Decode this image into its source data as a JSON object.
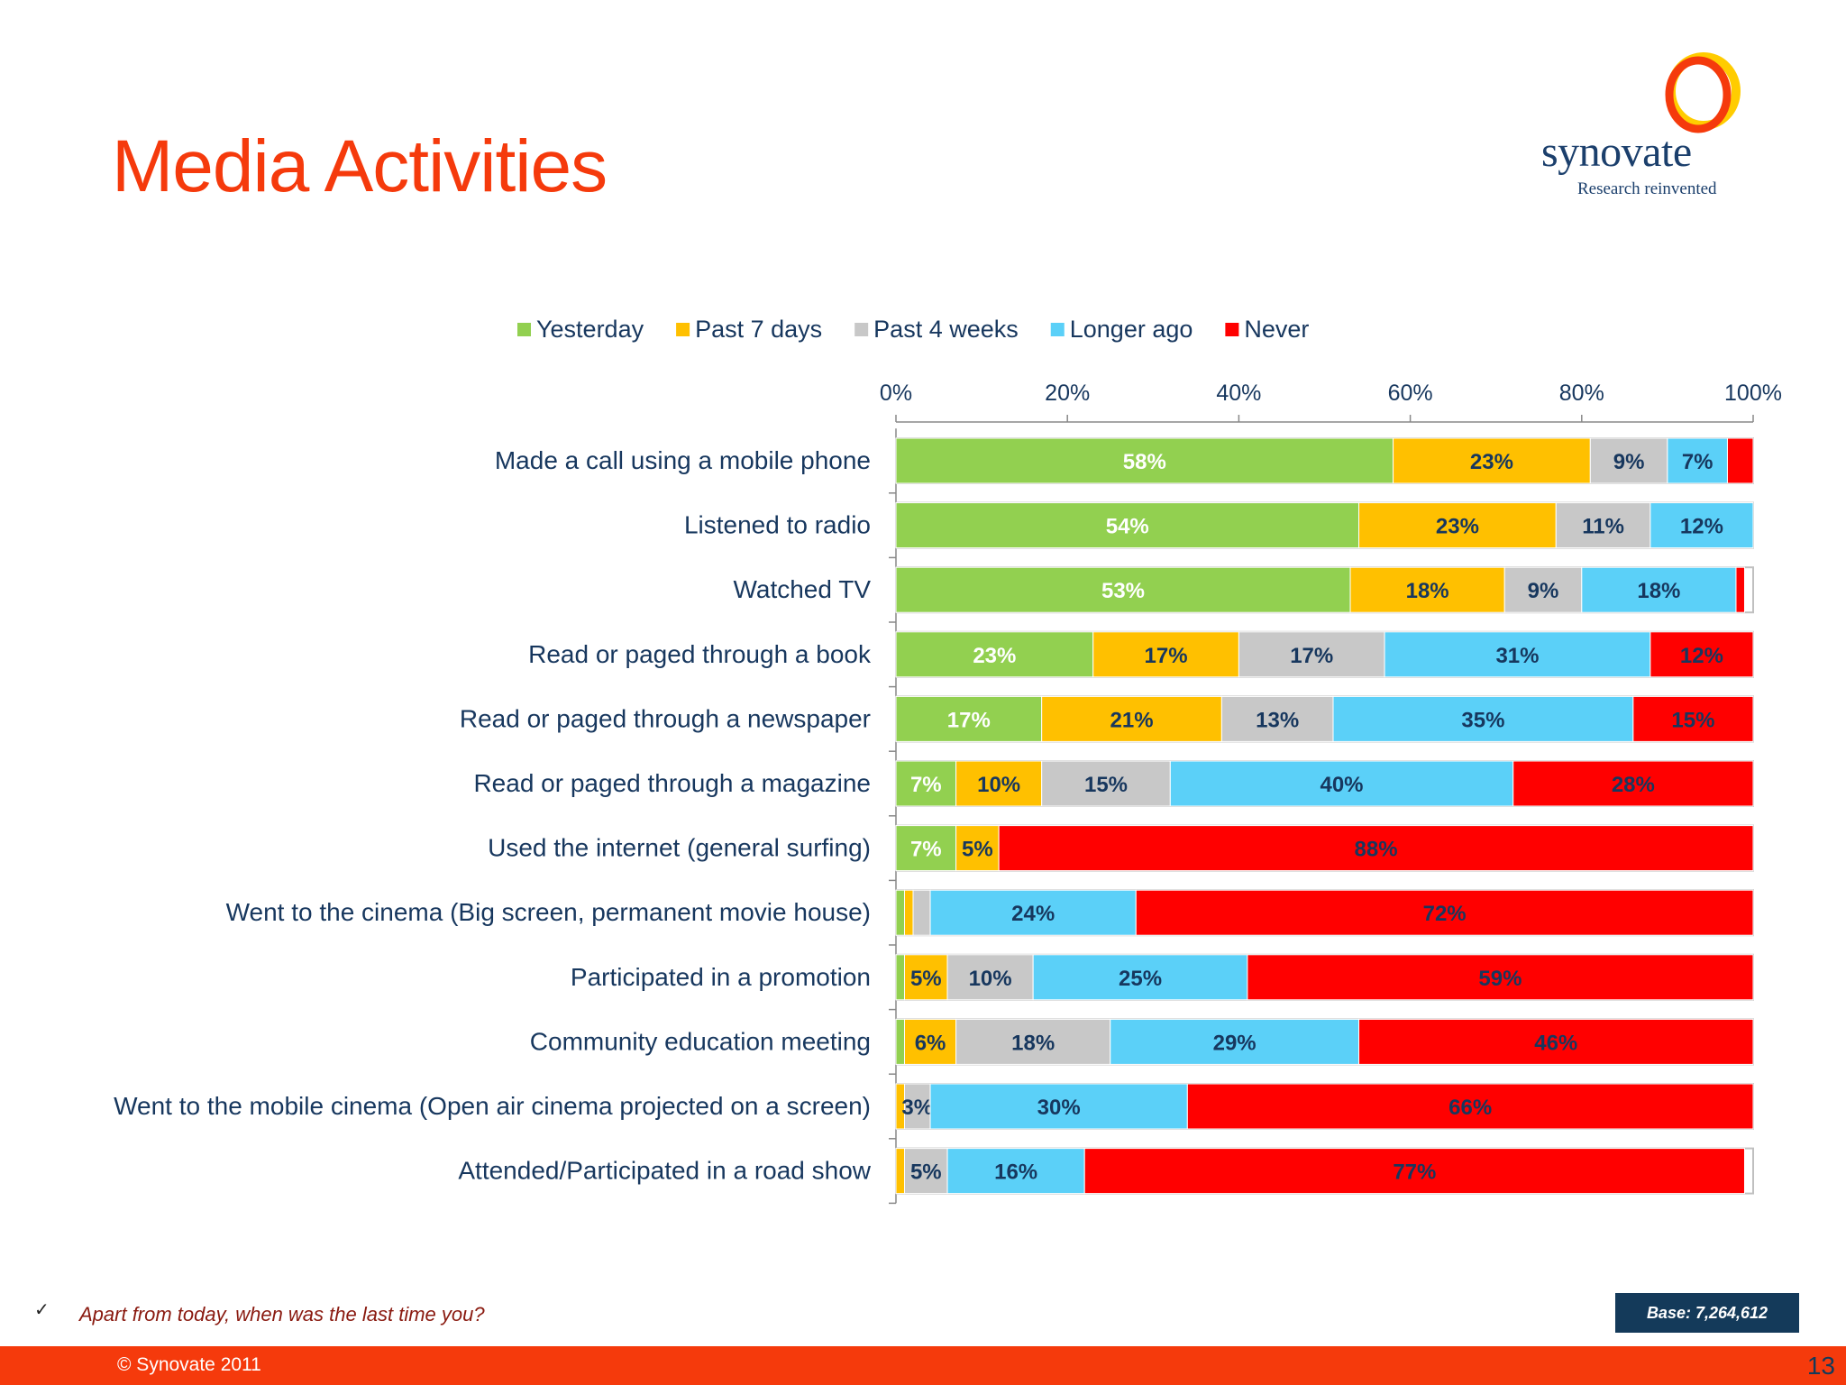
{
  "slide": {
    "title": "Media Activities",
    "logo": {
      "name": "synovate",
      "tagline": "Research reinvented"
    },
    "footnote_mark": "✓",
    "footnote": "Apart from today, when was the last time you?",
    "base": "Base: 7,264,612",
    "copyright": "© Synovate 2011",
    "page_number": "13",
    "colors": {
      "accent": "#f53a0c",
      "navy": "#143a5a"
    }
  },
  "chart_data": {
    "type": "bar",
    "orientation": "horizontal",
    "stacked": true,
    "xlim": [
      0,
      100
    ],
    "x_ticks": [
      "0%",
      "20%",
      "40%",
      "60%",
      "80%",
      "100%"
    ],
    "legend_position": "top",
    "categories": [
      "Made a call using a mobile phone",
      "Listened to radio",
      "Watched TV",
      "Read or paged through a book",
      "Read or paged through a newspaper",
      "Read or paged through a magazine",
      "Used the internet (general surfing)",
      "Went to the cinema (Big screen, permanent movie house)",
      "Participated in a promotion",
      "Community education meeting",
      "Went to the mobile cinema (Open air cinema projected on a screen)",
      "Attended/Participated in a road show"
    ],
    "series": [
      {
        "name": "Yesterday",
        "color": "#92d050",
        "label_color": "#ffffff",
        "values": [
          58,
          54,
          53,
          23,
          17,
          7,
          7,
          1,
          1,
          1,
          0,
          0
        ],
        "labels": [
          "58%",
          "54%",
          "53%",
          "23%",
          "17%",
          "7%",
          "7%",
          "",
          "",
          "",
          "",
          ""
        ]
      },
      {
        "name": "Past 7 days",
        "color": "#ffc000",
        "label_color": "#17375e",
        "values": [
          23,
          23,
          18,
          17,
          21,
          10,
          5,
          1,
          5,
          6,
          1,
          1
        ],
        "labels": [
          "23%",
          "23%",
          "18%",
          "17%",
          "21%",
          "10%",
          "5%",
          "",
          "5%",
          "6%",
          "",
          ""
        ]
      },
      {
        "name": "Past 4 weeks",
        "color": "#c8c8c8",
        "label_color": "#17375e",
        "values": [
          9,
          11,
          9,
          17,
          13,
          15,
          0,
          2,
          10,
          18,
          3,
          5
        ],
        "labels": [
          "9%",
          "11%",
          "9%",
          "17%",
          "13%",
          "15%",
          "",
          "",
          "10%",
          "18%",
          "3%",
          "5%"
        ]
      },
      {
        "name": "Longer ago",
        "color": "#5bd0f8",
        "label_color": "#17375e",
        "values": [
          7,
          12,
          18,
          31,
          35,
          40,
          0,
          24,
          25,
          29,
          30,
          16
        ],
        "labels": [
          "7%",
          "12%",
          "18%",
          "31%",
          "35%",
          "40%",
          "",
          "24%",
          "25%",
          "29%",
          "30%",
          "16%"
        ]
      },
      {
        "name": "Never",
        "color": "#ff0000",
        "label_color": "#17375e",
        "values": [
          3,
          0,
          1,
          12,
          15,
          28,
          88,
          72,
          59,
          46,
          66,
          77
        ],
        "labels": [
          "",
          "",
          "",
          "12%",
          "15%",
          "28%",
          "88%",
          "72%",
          "59%",
          "46%",
          "66%",
          "77%"
        ]
      }
    ]
  }
}
